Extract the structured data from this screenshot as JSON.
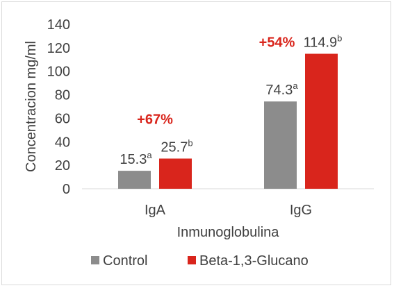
{
  "chart_data": {
    "type": "bar",
    "categories": [
      "IgA",
      "IgG"
    ],
    "series": [
      {
        "name": "Control",
        "color": "#8c8c8c",
        "values": [
          15.3,
          74.3
        ],
        "labels": [
          {
            "value": "15.3",
            "sup": "a"
          },
          {
            "value": "74.3",
            "sup": "a"
          }
        ]
      },
      {
        "name": "Beta-1,3-Glucano",
        "color": "#d9251c",
        "values": [
          25.7,
          114.9
        ],
        "labels": [
          {
            "value": "25.7",
            "sup": "b"
          },
          {
            "value": "114.9",
            "sup": "b"
          }
        ]
      }
    ],
    "annotations": [
      "+67%",
      "+54%"
    ],
    "annotation_color": "#d9251c",
    "xlabel": "Inmunoglobulina",
    "ylabel": "Concentracion  mg/ml",
    "ylim": [
      0,
      140
    ],
    "yticks": [
      "0",
      "20",
      "40",
      "60",
      "80",
      "100",
      "120",
      "140"
    ],
    "grid": false,
    "legend_position": "bottom"
  }
}
